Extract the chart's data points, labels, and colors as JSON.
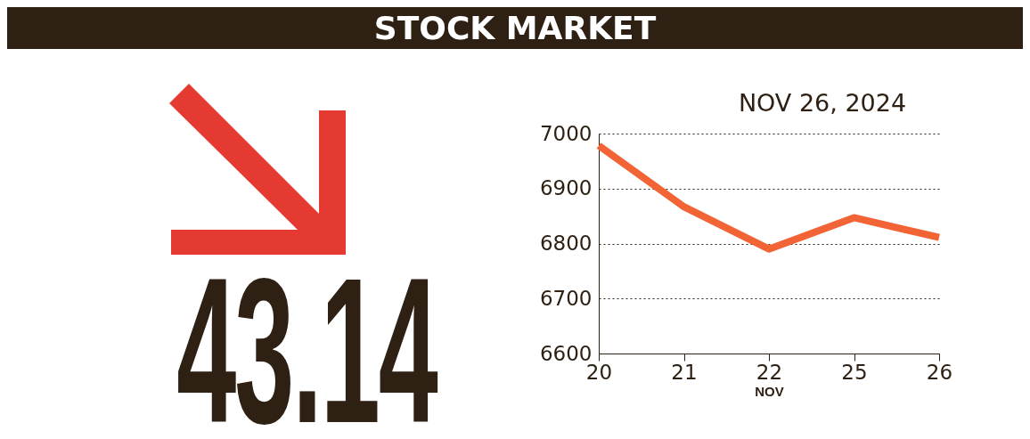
{
  "chart_data": {
    "type": "line",
    "title": "STOCK MARKET",
    "subtitle": "NOV 26, 2024",
    "xlabel": "NOV",
    "annotations": [
      "43.14"
    ],
    "categories": [
      "20",
      "21",
      "22",
      "25",
      "26"
    ],
    "series": [
      {
        "color": "#f26336",
        "values": [
          6978,
          6867,
          6790,
          6847,
          6811
        ]
      }
    ],
    "ylim": [
      6600,
      7000
    ],
    "yticks": [
      6600,
      6700,
      6800,
      6900,
      7000
    ],
    "grid": "y",
    "legend": false,
    "marker": "none",
    "line_style": "solid"
  }
}
